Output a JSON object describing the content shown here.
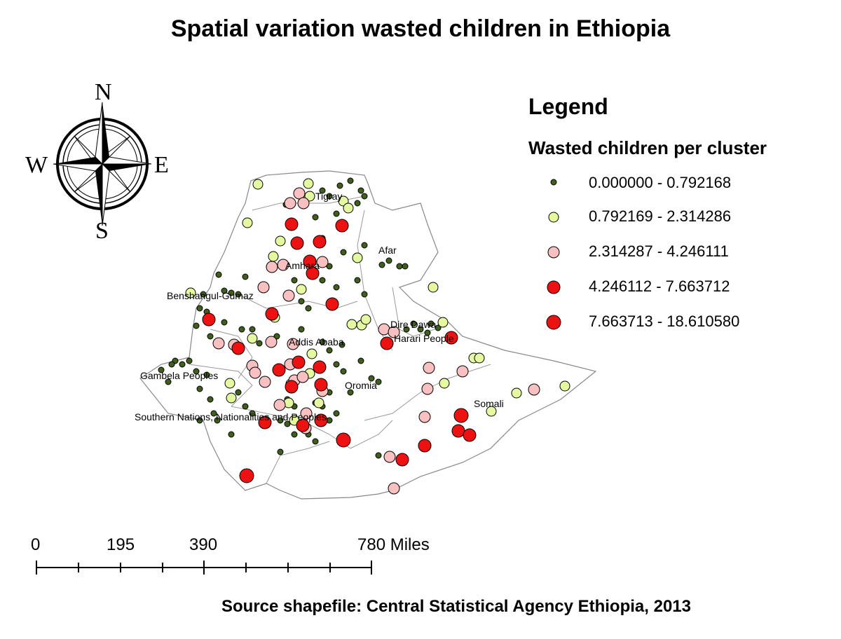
{
  "title": "Spatial variation wasted children in Ethiopia",
  "legend": {
    "title": "Legend",
    "subtitle": "Wasted children per cluster",
    "classes": [
      {
        "label": "0.000000 - 0.792168",
        "color": "#3f5f1a",
        "size": "smallest"
      },
      {
        "label": "0.792169 - 2.314286",
        "color": "#e5f9a0",
        "size": "small"
      },
      {
        "label": "2.314287 - 4.246111",
        "color": "#f8c0c0",
        "size": "medium"
      },
      {
        "label": "4.246112 - 7.663712",
        "color": "#ee1111",
        "size": "large"
      },
      {
        "label": "7.663713 - 18.610580",
        "color": "#ee1111",
        "size": "largest"
      }
    ]
  },
  "compass": {
    "n": "N",
    "s": "S",
    "e": "E",
    "w": "W"
  },
  "regions": [
    {
      "name": "Tigray"
    },
    {
      "name": "Afar"
    },
    {
      "name": "Amhara"
    },
    {
      "name": "Benshangul-Gumaz"
    },
    {
      "name": "Dire Dawa"
    },
    {
      "name": "Addis Ababa"
    },
    {
      "name": "Harari People"
    },
    {
      "name": "Gambela Peoples"
    },
    {
      "name": "Oromia"
    },
    {
      "name": "Somali"
    },
    {
      "name": "Southern Nations, Nationalities and Peoples"
    }
  ],
  "scale_bar": {
    "ticks": [
      "0",
      "195",
      "390",
      "780 Miles"
    ]
  },
  "source": "Source shapefile: Central Statistical Agency Ethiopia, 2013"
}
